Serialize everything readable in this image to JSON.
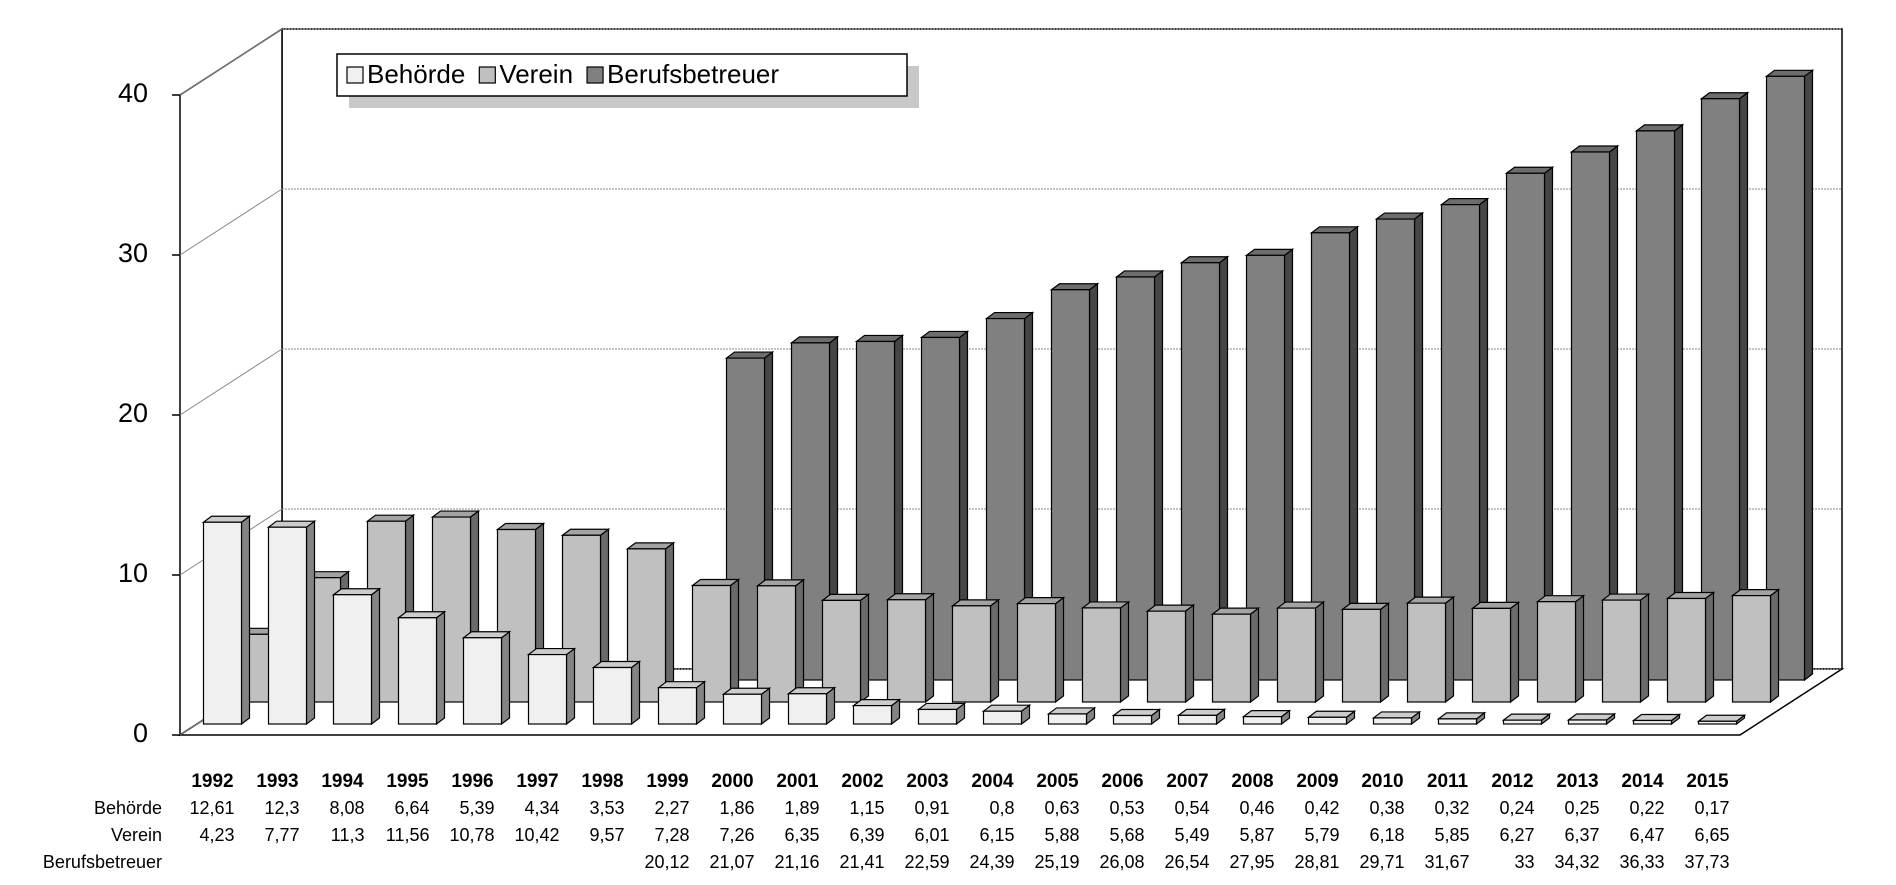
{
  "chart_data": {
    "type": "bar3d",
    "categories": [
      "1992",
      "1993",
      "1994",
      "1995",
      "1996",
      "1997",
      "1998",
      "1999",
      "2000",
      "2001",
      "2002",
      "2003",
      "2004",
      "2005",
      "2006",
      "2007",
      "2008",
      "2009",
      "2010",
      "2011",
      "2012",
      "2013",
      "2014",
      "2015"
    ],
    "series": [
      {
        "name": "Behörde",
        "color": "#f0f0f0",
        "values": [
          12.61,
          12.3,
          8.08,
          6.64,
          5.39,
          4.34,
          3.53,
          2.27,
          1.86,
          1.89,
          1.15,
          0.91,
          0.8,
          0.63,
          0.53,
          0.54,
          0.46,
          0.42,
          0.38,
          0.32,
          0.24,
          0.25,
          0.22,
          0.17
        ],
        "value_labels": [
          "12,61",
          "12,3",
          "8,08",
          "6,64",
          "5,39",
          "4,34",
          "3,53",
          "2,27",
          "1,86",
          "1,89",
          "1,15",
          "0,91",
          "0,8",
          "0,63",
          "0,53",
          "0,54",
          "0,46",
          "0,42",
          "0,38",
          "0,32",
          "0,24",
          "0,25",
          "0,22",
          "0,17"
        ]
      },
      {
        "name": "Verein",
        "color": "#c0c0c0",
        "values": [
          4.23,
          7.77,
          11.3,
          11.56,
          10.78,
          10.42,
          9.57,
          7.28,
          7.26,
          6.35,
          6.39,
          6.01,
          6.15,
          5.88,
          5.68,
          5.49,
          5.87,
          5.79,
          6.18,
          5.85,
          6.27,
          6.37,
          6.47,
          6.65
        ],
        "value_labels": [
          "4,23",
          "7,77",
          "11,3",
          "11,56",
          "10,78",
          "10,42",
          "9,57",
          "7,28",
          "7,26",
          "6,35",
          "6,39",
          "6,01",
          "6,15",
          "5,88",
          "5,68",
          "5,49",
          "5,87",
          "5,79",
          "6,18",
          "5,85",
          "6,27",
          "6,37",
          "6,47",
          "6,65"
        ]
      },
      {
        "name": "Berufsbetreuer",
        "color": "#808080",
        "values": [
          null,
          null,
          null,
          null,
          null,
          null,
          null,
          20.12,
          21.07,
          21.16,
          21.41,
          22.59,
          24.39,
          25.19,
          26.08,
          26.54,
          27.95,
          28.81,
          29.71,
          31.67,
          33,
          34.32,
          36.33,
          37.73
        ],
        "value_labels": [
          null,
          null,
          null,
          null,
          null,
          null,
          null,
          "20,12",
          "21,07",
          "21,16",
          "21,41",
          "22,59",
          "24,39",
          "25,19",
          "26,08",
          "26,54",
          "27,95",
          "28,81",
          "29,71",
          "31,67",
          "33",
          "34,32",
          "36,33",
          "37,73"
        ]
      }
    ],
    "ylim": [
      0,
      40
    ],
    "yticks": [
      0,
      10,
      20,
      30,
      40
    ],
    "grid": true,
    "legend": "upper left"
  }
}
